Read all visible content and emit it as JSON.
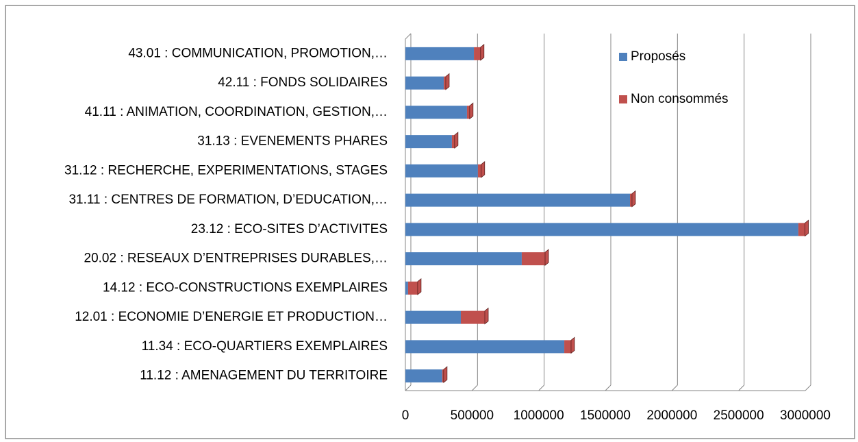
{
  "chart_data": {
    "type": "bar",
    "stacked": true,
    "orientation": "horizontal",
    "categories": [
      "43.01 : COMMUNICATION, PROMOTION,…",
      "42.11 : FONDS SOLIDAIRES",
      "41.11 : ANIMATION, COORDINATION, GESTION,…",
      "31.13 : EVENEMENTS PHARES",
      "31.12 : RECHERCHE, EXPERIMENTATIONS, STAGES",
      "31.11 : CENTRES DE FORMATION, D’EDUCATION,…",
      "23.12 : ECO-SITES D’ACTIVITES",
      "20.02 : RESEAUX D’ENTREPRISES DURABLES,…",
      "14.12 : ECO-CONSTRUCTIONS EXEMPLAIRES",
      "12.01 : ECONOMIE D’ENERGIE ET PRODUCTION…",
      "11.34 : ECO-QUARTIERS EXEMPLAIRES",
      "11.12 : AMENAGEMENT DU TERRITOIRE"
    ],
    "series": [
      {
        "name": "Proposés",
        "color": "#4f81bd",
        "values": [
          514000,
          288000,
          462000,
          349000,
          544000,
          1685000,
          2948000,
          873000,
          20000,
          416000,
          1192000,
          277000
        ]
      },
      {
        "name": "Non consommés",
        "color": "#c0504d",
        "values": [
          50000,
          15000,
          20000,
          20000,
          25000,
          15000,
          50000,
          175000,
          72000,
          180000,
          51000,
          10000
        ]
      }
    ],
    "xlim": [
      0,
      3000000
    ],
    "xticks": [
      0,
      500000,
      1000000,
      1500000,
      2000000,
      2500000,
      3000000
    ],
    "grid": true,
    "legend": "top-right"
  }
}
